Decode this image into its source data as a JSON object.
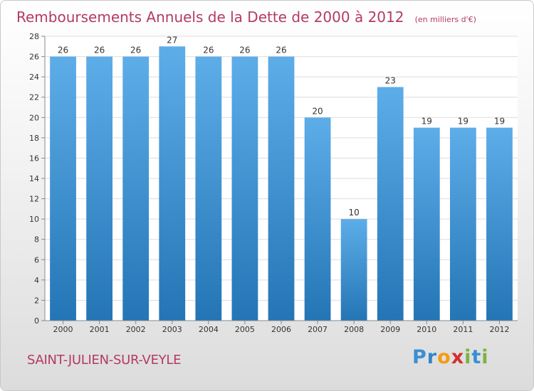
{
  "chart_data": {
    "type": "bar",
    "title": "Remboursements Annuels de la Dette de 2000 à 2012",
    "subtitle": "(en milliers d'€)",
    "categories": [
      "2000",
      "2001",
      "2002",
      "2003",
      "2004",
      "2005",
      "2006",
      "2007",
      "2008",
      "2009",
      "2010",
      "2011",
      "2012"
    ],
    "values": [
      26,
      26,
      26,
      27,
      26,
      26,
      26,
      20,
      10,
      23,
      19,
      19,
      19
    ],
    "ylim": [
      0,
      28
    ],
    "yticks": [
      0,
      2,
      4,
      6,
      8,
      10,
      12,
      14,
      16,
      18,
      20,
      22,
      24,
      26,
      28
    ],
    "grid": true,
    "bar_color_top": "#5dade9",
    "bar_color_bottom": "#2475b5"
  },
  "commune": "SAINT-JULIEN-SUR-VEYLE",
  "logo": {
    "letters": [
      "P",
      "r",
      "o",
      "x",
      "i",
      "t",
      "i"
    ],
    "colors": [
      "#3a8fd4",
      "#2f86cc",
      "#f39c12",
      "#d32f2f",
      "#7cb342",
      "#3a8fd4",
      "#7cb342"
    ]
  }
}
